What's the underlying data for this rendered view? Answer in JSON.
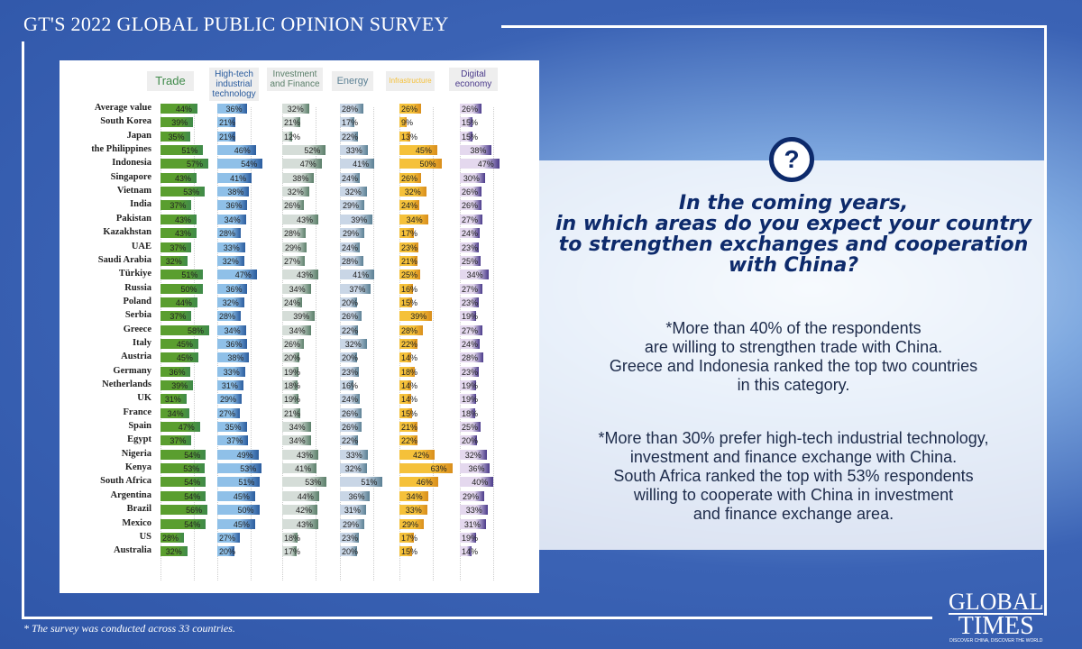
{
  "title": "GT'S 2022 GLOBAL PUBLIC OPINION SURVEY",
  "question": "In the coming years,\nin which areas do you expect your country\nto strengthen exchanges and cooperation\nwith China?",
  "notes": [
    "*More than 40% of the respondents\nare willing to strengthen trade with China.\nGreece and Indonesia ranked the top two countries\nin this category.",
    "*More than 30% prefer high-tech industrial technology,\ninvestment and finance exchange with China.\nSouth Africa ranked the top with 53% respondents\nwilling to cooperate with China in investment\nand finance exchange area."
  ],
  "footnote": "* The survey was conducted across 33 countries.",
  "logo": {
    "line1": "GLOBAL",
    "line2": "TIMES",
    "tagline": "DISCOVER CHINA, DISCOVER THE WORLD"
  },
  "chart_data": {
    "type": "bar",
    "orientation": "horizontal",
    "unit": "%",
    "categories": [
      "Average value",
      "South Korea",
      "Japan",
      "the Philippines",
      "Indonesia",
      "Singapore",
      "Vietnam",
      "India",
      "Pakistan",
      "Kazakhstan",
      "UAE",
      "Saudi Arabia",
      "Türkiye",
      "Russia",
      "Poland",
      "Serbia",
      "Greece",
      "Italy",
      "Austria",
      "Germany",
      "Netherlands",
      "UK",
      "France",
      "Spain",
      "Egypt",
      "Nigeria",
      "Kenya",
      "South Africa",
      "Argentina",
      "Brazil",
      "Mexico",
      "US",
      "Australia"
    ],
    "series": [
      {
        "name": "Trade",
        "color": "#5a9e2f",
        "dark": "#3f8a4a",
        "values": [
          44,
          39,
          35,
          51,
          57,
          43,
          53,
          37,
          43,
          43,
          37,
          32,
          51,
          50,
          44,
          37,
          58,
          45,
          45,
          36,
          39,
          31,
          34,
          47,
          37,
          54,
          53,
          54,
          54,
          56,
          54,
          28,
          32
        ]
      },
      {
        "name": "High-tech industrial technology",
        "color": "#8fc0e8",
        "dark": "#2a5c9e",
        "values": [
          36,
          21,
          21,
          46,
          54,
          41,
          38,
          36,
          34,
          28,
          33,
          32,
          47,
          36,
          32,
          28,
          34,
          36,
          38,
          33,
          31,
          29,
          27,
          35,
          37,
          49,
          53,
          51,
          45,
          50,
          45,
          27,
          20
        ]
      },
      {
        "name": "Investment and Finance",
        "color": "#d5ddd8",
        "dark": "#5b7f6a",
        "values": [
          32,
          21,
          12,
          52,
          47,
          38,
          32,
          26,
          43,
          28,
          29,
          27,
          43,
          34,
          24,
          39,
          34,
          26,
          20,
          19,
          18,
          19,
          21,
          34,
          34,
          43,
          41,
          53,
          44,
          42,
          43,
          18,
          17
        ]
      },
      {
        "name": "Energy",
        "color": "#c9d6e6",
        "dark": "#5b8094",
        "values": [
          28,
          17,
          22,
          33,
          41,
          24,
          32,
          29,
          39,
          29,
          24,
          28,
          41,
          37,
          20,
          26,
          22,
          32,
          20,
          23,
          16,
          24,
          26,
          26,
          22,
          33,
          32,
          51,
          36,
          31,
          29,
          23,
          20
        ]
      },
      {
        "name": "Infrastructure",
        "color": "#f5c13a",
        "dark": "#d98e1c",
        "values": [
          26,
          9,
          13,
          45,
          50,
          26,
          32,
          24,
          34,
          17,
          23,
          21,
          25,
          16,
          15,
          39,
          28,
          22,
          14,
          18,
          14,
          14,
          15,
          21,
          22,
          42,
          63,
          46,
          34,
          33,
          29,
          17,
          15
        ]
      },
      {
        "name": "Digital economy",
        "color": "#e4d8ee",
        "dark": "#4a3a8a",
        "values": [
          26,
          15,
          15,
          38,
          47,
          30,
          26,
          26,
          27,
          24,
          23,
          25,
          34,
          27,
          23,
          19,
          27,
          24,
          28,
          23,
          19,
          19,
          18,
          25,
          20,
          32,
          36,
          40,
          29,
          33,
          31,
          19,
          14
        ]
      }
    ]
  }
}
